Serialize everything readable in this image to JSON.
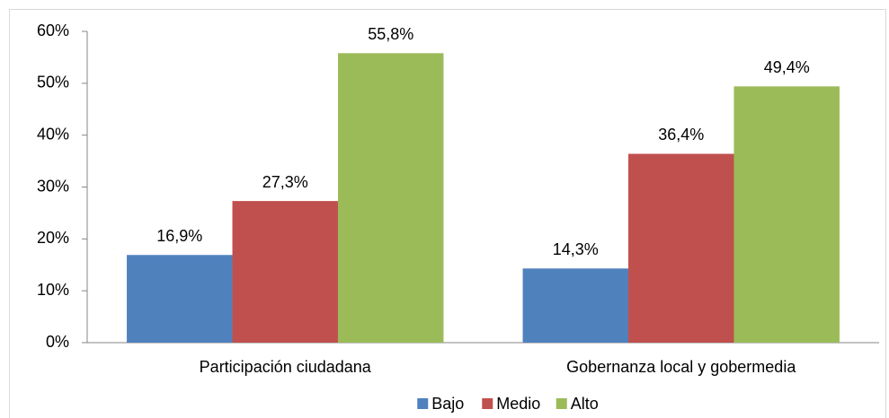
{
  "chart_data": {
    "type": "bar",
    "categories": [
      "Participación ciudadana",
      "Gobernanza local y gobermedia"
    ],
    "series": [
      {
        "name": "Bajo",
        "color": "#4f81bd",
        "values": [
          16.9,
          14.3
        ],
        "value_labels": [
          "16,9%",
          "14,3%"
        ]
      },
      {
        "name": "Medio",
        "color": "#c0504d",
        "values": [
          27.3,
          36.4
        ],
        "value_labels": [
          "27,3%",
          "36,4%"
        ]
      },
      {
        "name": "Alto",
        "color": "#9bbb59",
        "values": [
          55.8,
          49.4
        ],
        "value_labels": [
          "55,8%",
          "49,4%"
        ]
      }
    ],
    "ylim": [
      0,
      60
    ],
    "yticks": [
      {
        "value": 0,
        "label": "0%"
      },
      {
        "value": 10,
        "label": "10%"
      },
      {
        "value": 20,
        "label": "20%"
      },
      {
        "value": 30,
        "label": "30%"
      },
      {
        "value": 40,
        "label": "40%"
      },
      {
        "value": 50,
        "label": "50%"
      },
      {
        "value": 60,
        "label": "60%"
      }
    ],
    "grid": false,
    "legend": "bottom"
  }
}
